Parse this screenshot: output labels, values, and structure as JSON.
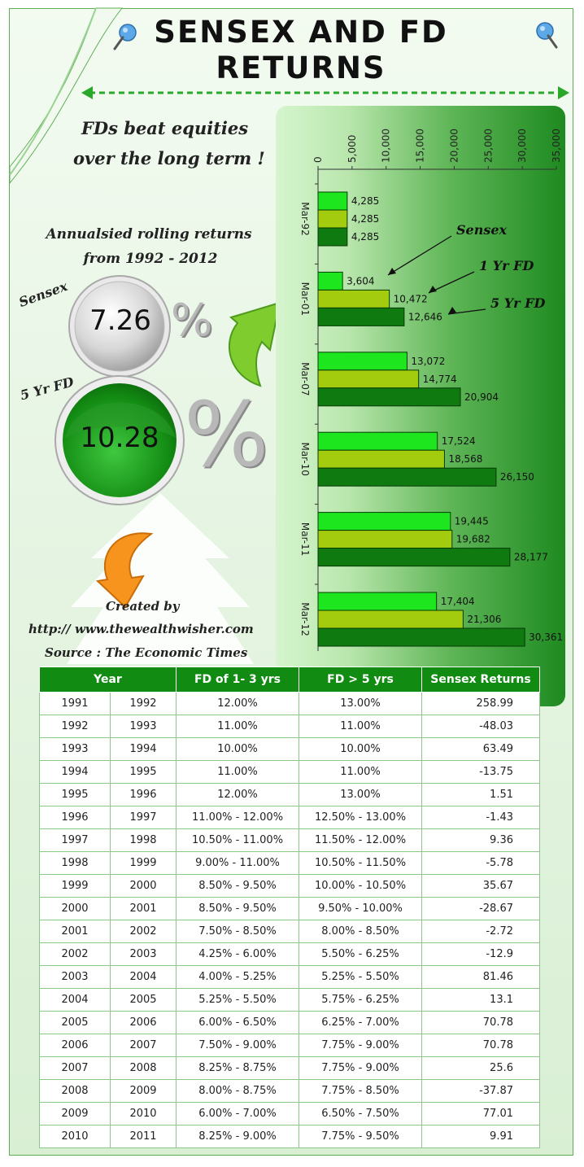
{
  "header": {
    "title_line1": "SENSEX AND FD",
    "title_line2": "RETURNS",
    "tagline_line1": "FDs beat equities",
    "tagline_line2": "over the long term !"
  },
  "summary": {
    "heading_line1": "Annualsied rolling returns",
    "heading_line2": "from 1992 - 2012",
    "sensex_label": "Sensex",
    "sensex_value": "7.26",
    "fd_label": "5 Yr FD",
    "fd_value": "10.28",
    "percent_sign": "%"
  },
  "credits": {
    "created_by": "Created by",
    "url": "http:// www.thewealthwisher.com",
    "source": "Source : The Economic Times"
  },
  "colors": {
    "sensex": "#1ee61e",
    "fd1": "#a4cc0e",
    "fd5": "#0f7a0f",
    "table_header": "#128b12"
  },
  "chart_data": {
    "type": "bar",
    "orientation": "horizontal",
    "categories": [
      "Mar-92",
      "Mar-01",
      "Mar-07",
      "Mar-10",
      "Mar-11",
      "Mar-12"
    ],
    "series": [
      {
        "name": "Sensex",
        "values": [
          4285,
          3604,
          13072,
          17524,
          19445,
          17404
        ]
      },
      {
        "name": "1 Yr FD",
        "values": [
          4285,
          10472,
          14774,
          18568,
          19682,
          21306
        ]
      },
      {
        "name": "5 Yr FD",
        "values": [
          4285,
          12646,
          20904,
          26150,
          28177,
          30361
        ]
      }
    ],
    "value_labels": [
      [
        "4,285",
        "3,604",
        "13,072",
        "17,524",
        "19,445",
        "17,404"
      ],
      [
        "4,285",
        "10,472",
        "14,774",
        "18,568",
        "19,682",
        "21,306"
      ],
      [
        "4,285",
        "12,646",
        "20,904",
        "26,150",
        "28,177",
        "30,361"
      ]
    ],
    "xlim": [
      0,
      35000
    ],
    "ticks": [
      0,
      5000,
      10000,
      15000,
      20000,
      25000,
      30000,
      35000
    ],
    "tick_labels": [
      "0",
      "5,000",
      "10,000",
      "15,000",
      "20,000",
      "25,000",
      "30,000",
      "35,000"
    ],
    "grid": false,
    "annotations": [
      "Sensex",
      "1 Yr FD",
      "5 Yr FD"
    ]
  },
  "table": {
    "headers": [
      "Year",
      "FD of 1- 3 yrs",
      "FD > 5 yrs",
      "Sensex Returns"
    ],
    "rows": [
      [
        "1991",
        "1992",
        "12.00%",
        "13.00%",
        "258.99"
      ],
      [
        "1992",
        "1993",
        "11.00%",
        "11.00%",
        "-48.03"
      ],
      [
        "1993",
        "1994",
        "10.00%",
        "10.00%",
        "63.49"
      ],
      [
        "1994",
        "1995",
        "11.00%",
        "11.00%",
        "-13.75"
      ],
      [
        "1995",
        "1996",
        "12.00%",
        "13.00%",
        "1.51"
      ],
      [
        "1996",
        "1997",
        "11.00% - 12.00%",
        "12.50% - 13.00%",
        "-1.43"
      ],
      [
        "1997",
        "1998",
        "10.50% - 11.00%",
        "11.50% - 12.00%",
        "9.36"
      ],
      [
        "1998",
        "1999",
        "9.00% - 11.00%",
        "10.50% - 11.50%",
        "-5.78"
      ],
      [
        "1999",
        "2000",
        "8.50% - 9.50%",
        "10.00% - 10.50%",
        "35.67"
      ],
      [
        "2000",
        "2001",
        "8.50% - 9.50%",
        "9.50% - 10.00%",
        "-28.67"
      ],
      [
        "2001",
        "2002",
        "7.50% - 8.50%",
        "8.00% - 8.50%",
        "-2.72"
      ],
      [
        "2002",
        "2003",
        "4.25% - 6.00%",
        "5.50% - 6.25%",
        "-12.9"
      ],
      [
        "2003",
        "2004",
        "4.00% - 5.25%",
        "5.25% - 5.50%",
        "81.46"
      ],
      [
        "2004",
        "2005",
        "5.25% - 5.50%",
        "5.75% - 6.25%",
        "13.1"
      ],
      [
        "2005",
        "2006",
        "6.00% - 6.50%",
        "6.25% - 7.00%",
        "70.78"
      ],
      [
        "2006",
        "2007",
        "7.50% - 9.00%",
        "7.75% - 9.00%",
        "70.78"
      ],
      [
        "2007",
        "2008",
        "8.25% - 8.75%",
        "7.75% - 9.00%",
        "25.6"
      ],
      [
        "2008",
        "2009",
        "8.00% - 8.75%",
        "7.75% - 8.50%",
        "-37.87"
      ],
      [
        "2009",
        "2010",
        "6.00% - 7.00%",
        "6.50% - 7.50%",
        "77.01"
      ],
      [
        "2010",
        "2011",
        "8.25% - 9.00%",
        "7.75% - 9.50%",
        "9.91"
      ]
    ]
  }
}
